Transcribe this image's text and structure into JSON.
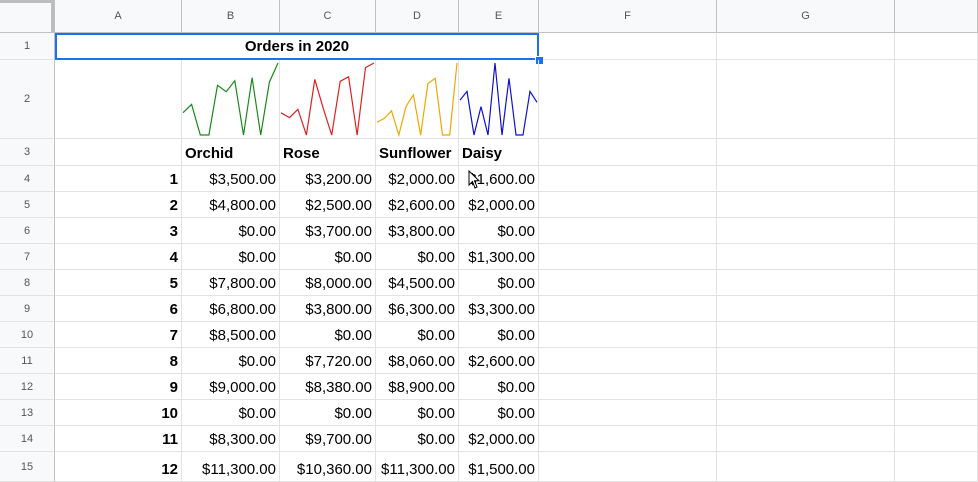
{
  "columns": [
    "A",
    "B",
    "C",
    "D",
    "E",
    "F",
    "G"
  ],
  "rows": [
    "1",
    "2",
    "3",
    "4",
    "5",
    "6",
    "7",
    "8",
    "9",
    "10",
    "11",
    "12",
    "13",
    "14",
    "15"
  ],
  "title": "Orders in 2020",
  "headers": [
    "Orchid",
    "Rose",
    "Sunflower",
    "Daisy"
  ],
  "colors": {
    "selection": "#1a73e8",
    "orchid": "#1a8a1a",
    "rose": "#e02020",
    "sunflower": "#f0a800",
    "daisy": "#1010d0"
  },
  "table": [
    {
      "n": "1",
      "orchid": "$3,500.00",
      "rose": "$3,200.00",
      "sunflower": "$2,000.00",
      "daisy": "$1,600.00"
    },
    {
      "n": "2",
      "orchid": "$4,800.00",
      "rose": "$2,500.00",
      "sunflower": "$2,600.00",
      "daisy": "$2,000.00"
    },
    {
      "n": "3",
      "orchid": "$0.00",
      "rose": "$3,700.00",
      "sunflower": "$3,800.00",
      "daisy": "$0.00"
    },
    {
      "n": "4",
      "orchid": "$0.00",
      "rose": "$0.00",
      "sunflower": "$0.00",
      "daisy": "$1,300.00"
    },
    {
      "n": "5",
      "orchid": "$7,800.00",
      "rose": "$8,000.00",
      "sunflower": "$4,500.00",
      "daisy": "$0.00"
    },
    {
      "n": "6",
      "orchid": "$6,800.00",
      "rose": "$3,800.00",
      "sunflower": "$6,300.00",
      "daisy": "$3,300.00"
    },
    {
      "n": "7",
      "orchid": "$8,500.00",
      "rose": "$0.00",
      "sunflower": "$0.00",
      "daisy": "$0.00"
    },
    {
      "n": "8",
      "orchid": "$0.00",
      "rose": "$7,720.00",
      "sunflower": "$8,060.00",
      "daisy": "$2,600.00"
    },
    {
      "n": "9",
      "orchid": "$9,000.00",
      "rose": "$8,380.00",
      "sunflower": "$8,900.00",
      "daisy": "$0.00"
    },
    {
      "n": "10",
      "orchid": "$0.00",
      "rose": "$0.00",
      "sunflower": "$0.00",
      "daisy": "$0.00"
    },
    {
      "n": "11",
      "orchid": "$8,300.00",
      "rose": "$9,700.00",
      "sunflower": "$0.00",
      "daisy": "$2,000.00"
    },
    {
      "n": "12",
      "orchid": "$11,300.00",
      "rose": "$10,360.00",
      "sunflower": "$11,300.00",
      "daisy": "$1,500.00"
    }
  ],
  "sparklines": {
    "orchid": [
      3500,
      4800,
      0,
      0,
      7800,
      6800,
      8500,
      0,
      9000,
      0,
      8300,
      11300
    ],
    "rose": [
      3200,
      2500,
      3700,
      0,
      8000,
      3800,
      0,
      7720,
      8380,
      0,
      9700,
      10360
    ],
    "sunflower": [
      2000,
      2600,
      3800,
      0,
      4500,
      6300,
      0,
      8060,
      8900,
      0,
      0,
      11300
    ],
    "daisy": [
      1600,
      2000,
      0,
      1300,
      0,
      3300,
      0,
      2600,
      0,
      0,
      2000,
      1500
    ]
  }
}
